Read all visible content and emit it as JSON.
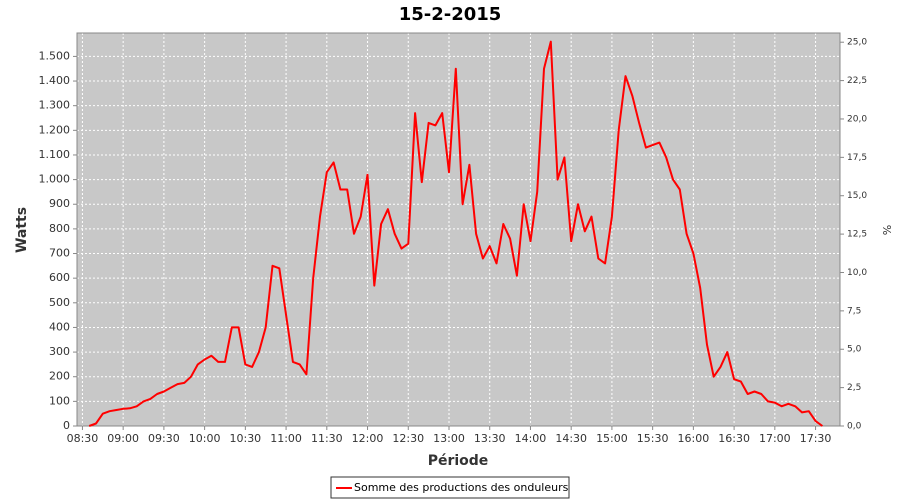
{
  "chart_data": {
    "type": "line",
    "title": "15-2-2015",
    "xlabel": "Période",
    "ylabel": "Watts",
    "y2label": "%",
    "x": [
      "08:35",
      "08:40",
      "08:45",
      "08:50",
      "08:55",
      "09:00",
      "09:05",
      "09:10",
      "09:15",
      "09:20",
      "09:25",
      "09:30",
      "09:35",
      "09:40",
      "09:45",
      "09:50",
      "09:55",
      "10:00",
      "10:05",
      "10:10",
      "10:15",
      "10:20",
      "10:25",
      "10:30",
      "10:35",
      "10:40",
      "10:45",
      "10:50",
      "10:55",
      "11:00",
      "11:05",
      "11:10",
      "11:15",
      "11:20",
      "11:25",
      "11:30",
      "11:35",
      "11:40",
      "11:45",
      "11:50",
      "11:55",
      "12:00",
      "12:05",
      "12:10",
      "12:15",
      "12:20",
      "12:25",
      "12:30",
      "12:35",
      "12:40",
      "12:45",
      "12:50",
      "12:55",
      "13:00",
      "13:05",
      "13:10",
      "13:15",
      "13:20",
      "13:25",
      "13:30",
      "13:35",
      "13:40",
      "13:45",
      "13:50",
      "13:55",
      "14:00",
      "14:05",
      "14:10",
      "14:15",
      "14:20",
      "14:25",
      "14:30",
      "14:35",
      "14:40",
      "14:45",
      "14:50",
      "14:55",
      "15:00",
      "15:05",
      "15:10",
      "15:15",
      "15:20",
      "15:25",
      "15:30",
      "15:35",
      "15:40",
      "15:45",
      "15:50",
      "15:55",
      "16:00",
      "16:05",
      "16:10",
      "16:15",
      "16:20",
      "16:25",
      "16:30",
      "16:35",
      "16:40",
      "16:45",
      "16:50",
      "16:55",
      "17:00",
      "17:05",
      "17:10",
      "17:15",
      "17:20",
      "17:25",
      "17:30",
      "17:35"
    ],
    "series": [
      {
        "name": "Somme des productions des onduleurs",
        "color": "#ff0000",
        "values": [
          0,
          10,
          50,
          60,
          65,
          70,
          72,
          80,
          100,
          110,
          130,
          140,
          155,
          170,
          175,
          200,
          250,
          270,
          285,
          260,
          260,
          400,
          400,
          250,
          240,
          300,
          400,
          650,
          640,
          450,
          260,
          250,
          210,
          600,
          850,
          1030,
          1070,
          960,
          960,
          780,
          850,
          1020,
          570,
          820,
          880,
          780,
          720,
          740,
          1270,
          990,
          1230,
          1220,
          1270,
          1030,
          1450,
          900,
          1060,
          780,
          680,
          730,
          660,
          820,
          760,
          610,
          900,
          750,
          950,
          1450,
          1560,
          1000,
          1090,
          750,
          900,
          790,
          850,
          680,
          660,
          850,
          1200,
          1420,
          1340,
          1230,
          1130,
          1140,
          1150,
          1090,
          1000,
          960,
          780,
          700,
          560,
          330,
          200,
          240,
          300,
          190,
          180,
          130,
          140,
          130,
          100,
          95,
          80,
          90,
          80,
          55,
          60,
          20,
          0
        ]
      }
    ],
    "xlim": [
      "08:26",
      "17:48"
    ],
    "xticks": [
      "08:30",
      "09:00",
      "09:30",
      "10:00",
      "10:30",
      "11:00",
      "11:30",
      "12:00",
      "12:30",
      "13:00",
      "13:30",
      "14:00",
      "14:30",
      "15:00",
      "15:30",
      "16:00",
      "16:30",
      "17:00",
      "17:30"
    ],
    "ylim": [
      0,
      1595
    ],
    "yticks": [
      0,
      100,
      200,
      300,
      400,
      500,
      600,
      700,
      800,
      900,
      {
        "value": 1000,
        "label": "1.000"
      },
      {
        "value": 1100,
        "label": "1.100"
      },
      {
        "value": 1200,
        "label": "1.200"
      },
      {
        "value": 1300,
        "label": "1.300"
      },
      {
        "value": 1400,
        "label": "1.400"
      },
      {
        "value": 1500,
        "label": "1.500"
      }
    ],
    "y2lim": [
      0,
      25.6
    ],
    "y2ticks": [
      {
        "value": 0,
        "label": "0,0"
      },
      {
        "value": 2.5,
        "label": "2,5"
      },
      {
        "value": 5,
        "label": "5,0"
      },
      {
        "value": 7.5,
        "label": "7,5"
      },
      {
        "value": 10,
        "label": "10,0"
      },
      {
        "value": 12.5,
        "label": "12,5"
      },
      {
        "value": 15,
        "label": "15,0"
      },
      {
        "value": 17.5,
        "label": "17,5"
      },
      {
        "value": 20,
        "label": "20,0"
      },
      {
        "value": 22.5,
        "label": "22,5"
      },
      {
        "value": 25,
        "label": "25,0"
      }
    ],
    "grid": true
  }
}
